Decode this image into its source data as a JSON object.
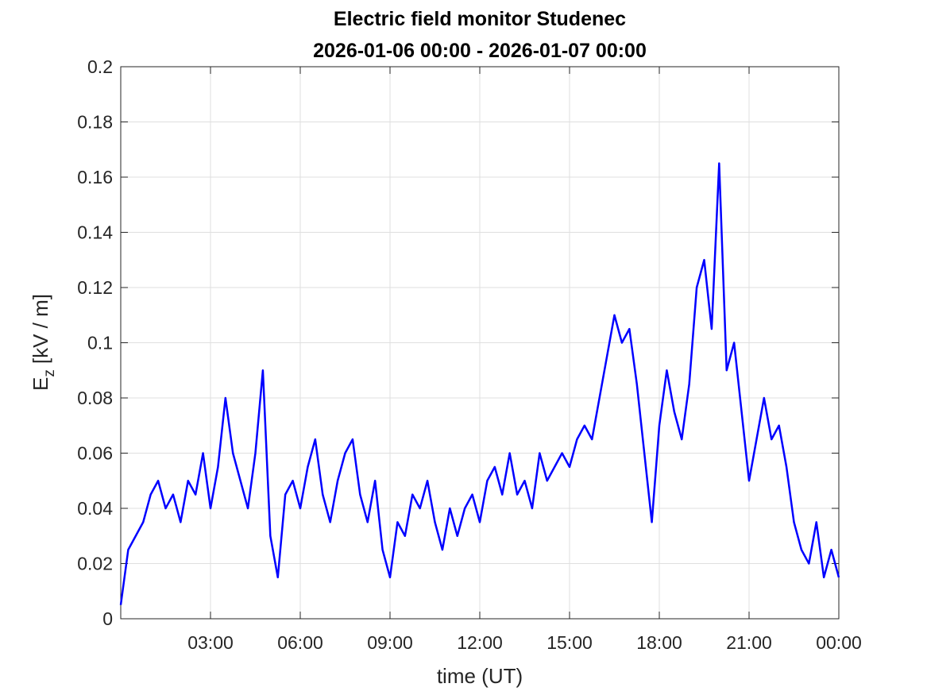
{
  "chart_data": {
    "type": "line",
    "title": "Electric field monitor Studenec",
    "subtitle": "2026-01-06 00:00 - 2026-01-07 00:00",
    "xlabel": "time (UT)",
    "ylabel": {
      "main": "E",
      "sub": "z",
      "rest": "[kV / m]"
    },
    "x": [
      0,
      0.25,
      0.5,
      0.75,
      1,
      1.25,
      1.5,
      1.75,
      2,
      2.25,
      2.5,
      2.75,
      3,
      3.25,
      3.5,
      3.75,
      4,
      4.25,
      4.5,
      4.75,
      5,
      5.25,
      5.5,
      5.75,
      6,
      6.25,
      6.5,
      6.75,
      7,
      7.25,
      7.5,
      7.75,
      8,
      8.25,
      8.5,
      8.75,
      9,
      9.25,
      9.5,
      9.75,
      10,
      10.25,
      10.5,
      10.75,
      11,
      11.25,
      11.5,
      11.75,
      12,
      12.25,
      12.5,
      12.75,
      13,
      13.25,
      13.5,
      13.75,
      14,
      14.25,
      14.5,
      14.75,
      15,
      15.25,
      15.5,
      15.75,
      16,
      16.25,
      16.5,
      16.75,
      17,
      17.25,
      17.5,
      17.75,
      18,
      18.25,
      18.5,
      18.75,
      19,
      19.25,
      19.5,
      19.75,
      20,
      20.25,
      20.5,
      20.75,
      21,
      21.25,
      21.5,
      21.75,
      22,
      22.25,
      22.5,
      22.75,
      23,
      23.25,
      23.5,
      23.75,
      24
    ],
    "series": [
      {
        "name": "Ez",
        "color": "#0000ff",
        "values": [
          0.005,
          0.025,
          0.03,
          0.035,
          0.045,
          0.05,
          0.04,
          0.045,
          0.035,
          0.05,
          0.045,
          0.06,
          0.04,
          0.055,
          0.08,
          0.06,
          0.05,
          0.04,
          0.06,
          0.09,
          0.03,
          0.015,
          0.045,
          0.05,
          0.04,
          0.055,
          0.065,
          0.045,
          0.035,
          0.05,
          0.06,
          0.065,
          0.045,
          0.035,
          0.05,
          0.025,
          0.015,
          0.035,
          0.03,
          0.045,
          0.04,
          0.05,
          0.035,
          0.025,
          0.04,
          0.03,
          0.04,
          0.045,
          0.035,
          0.05,
          0.055,
          0.045,
          0.06,
          0.045,
          0.05,
          0.04,
          0.06,
          0.05,
          0.055,
          0.06,
          0.055,
          0.065,
          0.07,
          0.065,
          0.08,
          0.095,
          0.11,
          0.1,
          0.105,
          0.085,
          0.06,
          0.035,
          0.07,
          0.09,
          0.075,
          0.065,
          0.085,
          0.12,
          0.13,
          0.105,
          0.165,
          0.09,
          0.1,
          0.075,
          0.05,
          0.065,
          0.08,
          0.065,
          0.07,
          0.055,
          0.035,
          0.025,
          0.02,
          0.035,
          0.015,
          0.025,
          0.015
        ]
      }
    ],
    "xlim": [
      0,
      24
    ],
    "xticks": [
      {
        "value": 3,
        "label": "03:00"
      },
      {
        "value": 6,
        "label": "06:00"
      },
      {
        "value": 9,
        "label": "09:00"
      },
      {
        "value": 12,
        "label": "12:00"
      },
      {
        "value": 15,
        "label": "15:00"
      },
      {
        "value": 18,
        "label": "18:00"
      },
      {
        "value": 21,
        "label": "21:00"
      },
      {
        "value": 24,
        "label": "00:00"
      }
    ],
    "ylim": [
      0,
      0.2
    ],
    "yticks": [
      0,
      0.02,
      0.04,
      0.06,
      0.08,
      0.1,
      0.12,
      0.14,
      0.16,
      0.18,
      0.2
    ],
    "grid": true
  }
}
